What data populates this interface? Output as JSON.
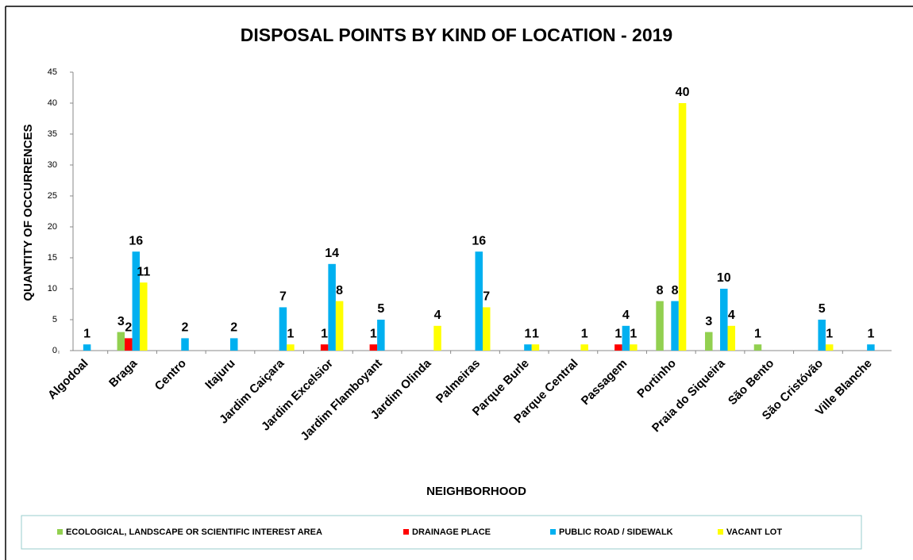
{
  "chart_data": {
    "type": "bar",
    "title": "DISPOSAL POINTS BY KIND OF LOCATION - 2019",
    "x_label": "NEIGHBORHOOD",
    "y_label": "QUANTITY OF OCCURRENCES",
    "categories": [
      "Algodoal",
      "Braga",
      "Centro",
      "Itajuru",
      "Jardim Caiçara",
      "Jardim Excelsior",
      "Jardim Flamboyant",
      "Jardim Olinda",
      "Palmeiras",
      "Parque Burle",
      "Parque Central",
      "Passagem",
      "Portinho",
      "Praia do Siqueira",
      "São Bento",
      "São Cristóvão",
      "Ville Blanche"
    ],
    "series": [
      {
        "name": "ECOLOGICAL, LANDSCAPE OR SCIENTIFIC INTEREST AREA",
        "color": "#92d050",
        "values": [
          null,
          3,
          null,
          null,
          null,
          null,
          null,
          null,
          null,
          null,
          null,
          null,
          8,
          3,
          1,
          null,
          null
        ]
      },
      {
        "name": "DRAINAGE PLACE",
        "color": "#ff0000",
        "values": [
          null,
          2,
          null,
          null,
          null,
          1,
          1,
          null,
          null,
          null,
          null,
          1,
          null,
          null,
          null,
          null,
          null
        ]
      },
      {
        "name": "PUBLIC ROAD / SIDEWALK",
        "color": "#00b0f0",
        "values": [
          1,
          16,
          2,
          2,
          7,
          14,
          5,
          null,
          16,
          1,
          null,
          4,
          8,
          10,
          null,
          5,
          1
        ]
      },
      {
        "name": "VACANT LOT",
        "color": "#ffff00",
        "values": [
          null,
          11,
          null,
          null,
          1,
          8,
          null,
          4,
          7,
          1,
          1,
          1,
          40,
          4,
          null,
          1,
          null
        ]
      }
    ],
    "ylim": [
      0,
      45
    ],
    "yticks": [
      0,
      5,
      10,
      15,
      20,
      25,
      30,
      35,
      40,
      45
    ]
  }
}
